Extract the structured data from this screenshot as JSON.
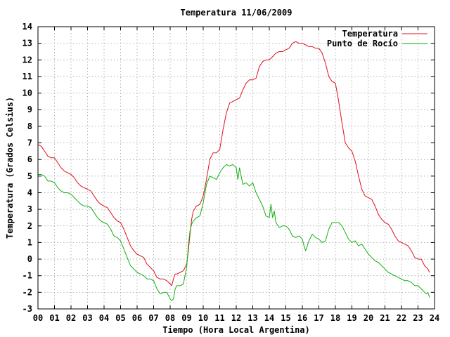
{
  "chart_data": {
    "type": "line",
    "title": "Temperatura 11/06/2009",
    "xlabel": "Tiempo (Hora Local Argentina)",
    "ylabel": "Temperatura (Grados Celsius)",
    "xlim": [
      0,
      24
    ],
    "ylim": [
      -3,
      14
    ],
    "xticks": [
      "00",
      "01",
      "02",
      "03",
      "04",
      "05",
      "06",
      "07",
      "08",
      "09",
      "10",
      "11",
      "12",
      "13",
      "14",
      "15",
      "16",
      "17",
      "18",
      "19",
      "20",
      "21",
      "22",
      "23",
      "24"
    ],
    "yticks": [
      -3,
      -2,
      -1,
      0,
      1,
      2,
      3,
      4,
      5,
      6,
      7,
      8,
      9,
      10,
      11,
      12,
      13,
      14
    ],
    "grid": true,
    "legend_position": "top-right",
    "colors": {
      "Temperatura": "#e0101c",
      "Punto de Rocío": "#10b010"
    },
    "series": [
      {
        "name": "Temperatura",
        "x": [
          0,
          0.2,
          0.4,
          0.6,
          0.8,
          1,
          1.2,
          1.4,
          1.6,
          1.8,
          2,
          2.2,
          2.4,
          2.6,
          2.8,
          3,
          3.2,
          3.4,
          3.6,
          3.8,
          4,
          4.2,
          4.4,
          4.6,
          4.8,
          5,
          5.2,
          5.4,
          5.6,
          5.8,
          6,
          6.2,
          6.4,
          6.6,
          6.8,
          7,
          7.2,
          7.4,
          7.6,
          7.8,
          8,
          8.1,
          8.2,
          8.3,
          8.4,
          8.6,
          8.8,
          9,
          9.1,
          9.2,
          9.3,
          9.4,
          9.6,
          9.8,
          10,
          10.2,
          10.4,
          10.6,
          10.8,
          11,
          11.2,
          11.4,
          11.6,
          11.8,
          12,
          12.2,
          12.4,
          12.6,
          12.8,
          13,
          13.2,
          13.4,
          13.6,
          13.8,
          14,
          14.2,
          14.4,
          14.6,
          14.8,
          15,
          15.2,
          15.4,
          15.6,
          15.8,
          16,
          16.2,
          16.4,
          16.6,
          16.8,
          17,
          17.2,
          17.4,
          17.6,
          17.8,
          18,
          18.2,
          18.4,
          18.6,
          18.8,
          19,
          19.2,
          19.4,
          19.6,
          19.8,
          20,
          20.2,
          20.4,
          20.6,
          20.8,
          21,
          21.2,
          21.4,
          21.6,
          21.8,
          22,
          22.2,
          22.4,
          22.6,
          22.8,
          23,
          23.2,
          23.4,
          23.5,
          23.6,
          23.7
        ],
        "y": [
          6.9,
          6.8,
          6.5,
          6.2,
          6.1,
          6.1,
          5.8,
          5.5,
          5.3,
          5.2,
          5.1,
          4.9,
          4.6,
          4.4,
          4.3,
          4.2,
          4.1,
          3.8,
          3.5,
          3.3,
          3.2,
          3.1,
          2.8,
          2.5,
          2.3,
          2.2,
          1.8,
          1.3,
          0.8,
          0.5,
          0.3,
          0.2,
          0.1,
          -0.3,
          -0.5,
          -0.7,
          -1.1,
          -1.2,
          -1.2,
          -1.3,
          -1.5,
          -1.6,
          -1.2,
          -0.9,
          -0.9,
          -0.8,
          -0.7,
          -0.3,
          0.5,
          1.5,
          2.4,
          2.9,
          3.2,
          3.3,
          3.8,
          4.8,
          6.0,
          6.4,
          6.4,
          6.6,
          7.8,
          8.8,
          9.4,
          9.5,
          9.6,
          9.7,
          10.2,
          10.6,
          10.8,
          10.8,
          10.9,
          11.6,
          11.9,
          12.0,
          12.0,
          12.2,
          12.4,
          12.5,
          12.5,
          12.6,
          12.7,
          13.0,
          13.1,
          13.0,
          13.0,
          12.9,
          12.8,
          12.8,
          12.7,
          12.7,
          12.4,
          11.8,
          11.0,
          10.7,
          10.6,
          9.5,
          8.2,
          7.0,
          6.7,
          6.5,
          5.9,
          5.0,
          4.2,
          3.8,
          3.7,
          3.6,
          3.2,
          2.7,
          2.4,
          2.2,
          2.1,
          1.8,
          1.4,
          1.1,
          1.0,
          0.9,
          0.8,
          0.5,
          0.1,
          0.0,
          0.0,
          -0.4,
          -0.5,
          -0.6,
          -0.8
        ]
      },
      {
        "name": "Punto de Rocío",
        "x": [
          0,
          0.2,
          0.4,
          0.6,
          0.8,
          1,
          1.2,
          1.4,
          1.6,
          1.8,
          2,
          2.2,
          2.4,
          2.6,
          2.8,
          3,
          3.2,
          3.4,
          3.6,
          3.8,
          4,
          4.2,
          4.4,
          4.6,
          4.8,
          5,
          5.2,
          5.4,
          5.6,
          5.8,
          6,
          6.2,
          6.4,
          6.6,
          6.8,
          7,
          7.2,
          7.4,
          7.6,
          7.8,
          8,
          8.1,
          8.2,
          8.3,
          8.4,
          8.6,
          8.8,
          9,
          9.1,
          9.2,
          9.3,
          9.4,
          9.6,
          9.8,
          10,
          10.2,
          10.4,
          10.6,
          10.8,
          11,
          11.2,
          11.4,
          11.6,
          11.8,
          12,
          12.1,
          12.2,
          12.4,
          12.6,
          12.8,
          13,
          13.2,
          13.4,
          13.6,
          13.8,
          14,
          14.1,
          14.2,
          14.3,
          14.4,
          14.6,
          14.8,
          15,
          15.2,
          15.4,
          15.6,
          15.8,
          16,
          16.1,
          16.2,
          16.4,
          16.6,
          16.8,
          17,
          17.2,
          17.4,
          17.6,
          17.8,
          18,
          18.2,
          18.4,
          18.6,
          18.8,
          19,
          19.2,
          19.4,
          19.6,
          19.8,
          20,
          20.2,
          20.4,
          20.6,
          20.8,
          21,
          21.2,
          21.4,
          21.6,
          21.8,
          22,
          22.2,
          22.4,
          22.6,
          22.8,
          23,
          23.2,
          23.4,
          23.5,
          23.6,
          23.7
        ],
        "y": [
          5.1,
          5.1,
          5.0,
          4.7,
          4.7,
          4.6,
          4.3,
          4.1,
          4.0,
          4.0,
          3.9,
          3.7,
          3.5,
          3.3,
          3.2,
          3.2,
          3.1,
          2.8,
          2.5,
          2.3,
          2.2,
          2.1,
          1.8,
          1.4,
          1.3,
          1.1,
          0.6,
          0.1,
          -0.4,
          -0.6,
          -0.8,
          -0.9,
          -1.0,
          -1.2,
          -1.2,
          -1.3,
          -1.8,
          -2.1,
          -2.0,
          -2.0,
          -2.4,
          -2.5,
          -2.4,
          -1.8,
          -1.6,
          -1.6,
          -1.5,
          -0.5,
          0.8,
          1.7,
          2.1,
          2.3,
          2.5,
          2.6,
          3.4,
          4.5,
          5.0,
          4.9,
          4.8,
          5.2,
          5.5,
          5.7,
          5.6,
          5.7,
          5.5,
          4.8,
          5.5,
          4.5,
          4.6,
          4.4,
          4.6,
          4.0,
          3.6,
          3.2,
          2.6,
          2.5,
          3.3,
          2.5,
          2.9,
          2.2,
          1.9,
          2.0,
          2.0,
          1.8,
          1.4,
          1.3,
          1.4,
          1.2,
          0.8,
          0.5,
          1.1,
          1.5,
          1.3,
          1.2,
          1.0,
          1.1,
          1.8,
          2.2,
          2.2,
          2.2,
          2.0,
          1.6,
          1.2,
          1.0,
          1.1,
          0.8,
          0.9,
          0.6,
          0.3,
          0.1,
          -0.1,
          -0.2,
          -0.4,
          -0.6,
          -0.8,
          -0.9,
          -1.0,
          -1.1,
          -1.2,
          -1.3,
          -1.3,
          -1.4,
          -1.6,
          -1.6,
          -1.8,
          -2.0,
          -2.1,
          -2.0,
          -2.3
        ]
      }
    ]
  }
}
